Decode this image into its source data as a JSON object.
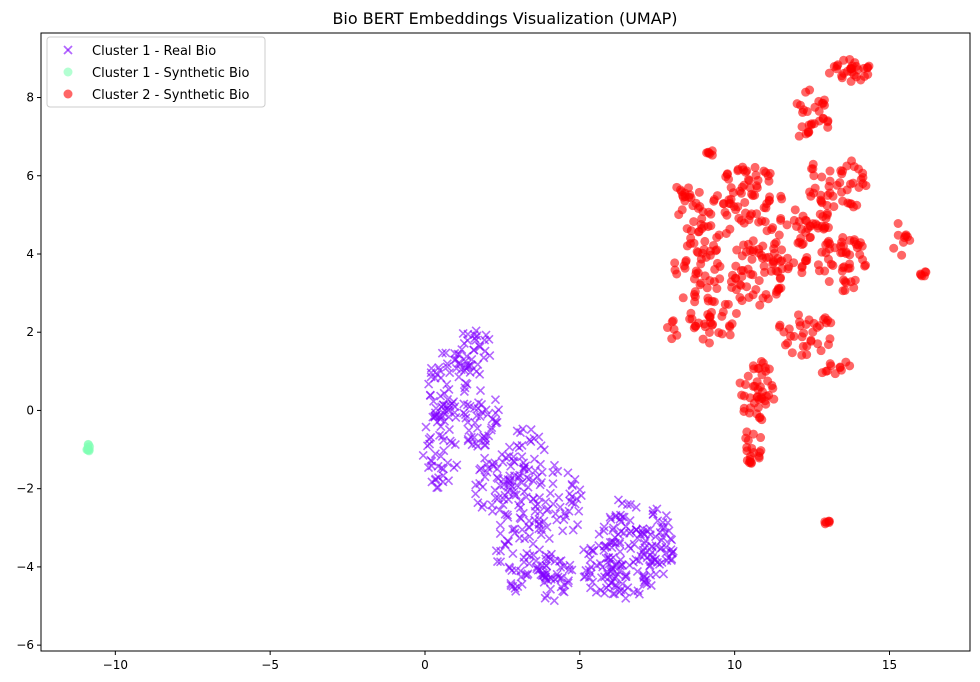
{
  "chart_data": {
    "type": "scatter",
    "title": "Bio BERT Embeddings Visualization (UMAP)",
    "xlabel": "",
    "ylabel": "",
    "xlim": [
      -12.4,
      17.6
    ],
    "ylim": [
      -6.15,
      9.65
    ],
    "xticks": [
      -10,
      -5,
      0,
      5,
      10,
      15
    ],
    "yticks": [
      -6,
      -4,
      -2,
      0,
      2,
      4,
      6,
      8
    ],
    "grid": false,
    "legend_position": "top-left",
    "series": [
      {
        "name": "Cluster 1 - Real Bio",
        "marker": "x",
        "color": "#8000ff",
        "blobs": [
          {
            "cx": 0.8,
            "cy": 0.6,
            "rx": 0.7,
            "ry": 1.0,
            "n": 55
          },
          {
            "cx": 1.6,
            "cy": 1.5,
            "rx": 0.6,
            "ry": 0.6,
            "n": 35
          },
          {
            "cx": 0.5,
            "cy": -1.0,
            "rx": 0.6,
            "ry": 1.0,
            "n": 45
          },
          {
            "cx": 1.8,
            "cy": -0.2,
            "rx": 0.6,
            "ry": 0.8,
            "n": 40
          },
          {
            "cx": 2.4,
            "cy": -2.0,
            "rx": 0.8,
            "ry": 1.0,
            "n": 55
          },
          {
            "cx": 3.3,
            "cy": -1.4,
            "rx": 0.7,
            "ry": 1.0,
            "n": 45
          },
          {
            "cx": 3.2,
            "cy": -3.6,
            "rx": 0.9,
            "ry": 1.1,
            "n": 65
          },
          {
            "cx": 4.3,
            "cy": -2.4,
            "rx": 0.8,
            "ry": 1.1,
            "n": 45
          },
          {
            "cx": 4.2,
            "cy": -4.3,
            "rx": 0.7,
            "ry": 0.6,
            "n": 35
          },
          {
            "cx": 5.7,
            "cy": -3.8,
            "rx": 0.7,
            "ry": 0.9,
            "n": 45
          },
          {
            "cx": 6.6,
            "cy": -4.0,
            "rx": 0.9,
            "ry": 1.0,
            "n": 75
          },
          {
            "cx": 7.5,
            "cy": -3.4,
            "rx": 0.6,
            "ry": 0.9,
            "n": 50
          },
          {
            "cx": 6.4,
            "cy": -2.7,
            "rx": 0.5,
            "ry": 0.5,
            "n": 20
          }
        ]
      },
      {
        "name": "Cluster 1 - Synthetic Bio",
        "marker": "o",
        "color": "#80ffb4",
        "blobs": [
          {
            "cx": -10.9,
            "cy": -0.95,
            "rx": 0.08,
            "ry": 0.12,
            "n": 10
          }
        ]
      },
      {
        "name": "Cluster 2 - Synthetic Bio",
        "marker": "o",
        "color": "#ff0000",
        "blobs": [
          {
            "cx": 13.7,
            "cy": 8.7,
            "rx": 0.7,
            "ry": 0.3,
            "n": 30
          },
          {
            "cx": 12.5,
            "cy": 7.5,
            "rx": 0.6,
            "ry": 0.7,
            "n": 30
          },
          {
            "cx": 12.8,
            "cy": 5.5,
            "rx": 0.5,
            "ry": 1.0,
            "n": 35
          },
          {
            "cx": 10.5,
            "cy": 5.5,
            "rx": 1.1,
            "ry": 0.8,
            "n": 60
          },
          {
            "cx": 9.0,
            "cy": 4.8,
            "rx": 0.9,
            "ry": 0.8,
            "n": 40
          },
          {
            "cx": 8.8,
            "cy": 3.5,
            "rx": 0.8,
            "ry": 0.8,
            "n": 35
          },
          {
            "cx": 9.3,
            "cy": 2.3,
            "rx": 0.8,
            "ry": 0.6,
            "n": 35
          },
          {
            "cx": 10.7,
            "cy": 3.5,
            "rx": 0.9,
            "ry": 0.9,
            "n": 60
          },
          {
            "cx": 11.8,
            "cy": 4.3,
            "rx": 0.8,
            "ry": 0.9,
            "n": 45
          },
          {
            "cx": 13.5,
            "cy": 3.8,
            "rx": 0.8,
            "ry": 0.8,
            "n": 50
          },
          {
            "cx": 13.8,
            "cy": 5.8,
            "rx": 0.5,
            "ry": 0.6,
            "n": 25
          },
          {
            "cx": 12.3,
            "cy": 2.0,
            "rx": 0.9,
            "ry": 0.6,
            "n": 35
          },
          {
            "cx": 10.7,
            "cy": 0.5,
            "rx": 0.6,
            "ry": 0.8,
            "n": 45
          },
          {
            "cx": 10.6,
            "cy": -0.9,
            "rx": 0.3,
            "ry": 0.5,
            "n": 15
          },
          {
            "cx": 8.3,
            "cy": 5.5,
            "rx": 0.3,
            "ry": 0.3,
            "n": 12
          },
          {
            "cx": 8.0,
            "cy": 2.0,
            "rx": 0.2,
            "ry": 0.3,
            "n": 6
          },
          {
            "cx": 9.2,
            "cy": 6.6,
            "rx": 0.12,
            "ry": 0.1,
            "n": 6
          },
          {
            "cx": 10.5,
            "cy": -1.25,
            "rx": 0.1,
            "ry": 0.1,
            "n": 5
          },
          {
            "cx": 13.0,
            "cy": -2.9,
            "rx": 0.12,
            "ry": 0.08,
            "n": 6
          },
          {
            "cx": 16.1,
            "cy": 3.5,
            "rx": 0.1,
            "ry": 0.1,
            "n": 6
          },
          {
            "cx": 13.1,
            "cy": 1.0,
            "rx": 0.3,
            "ry": 0.2,
            "n": 6
          },
          {
            "cx": 13.6,
            "cy": 1.1,
            "rx": 0.2,
            "ry": 0.15,
            "n": 5
          },
          {
            "cx": 15.3,
            "cy": 4.5,
            "rx": 0.4,
            "ry": 0.6,
            "n": 10
          }
        ]
      }
    ]
  }
}
